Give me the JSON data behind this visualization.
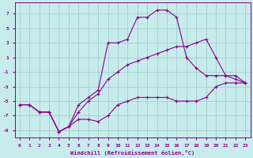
{
  "xlabel": "Windchill (Refroidissement éolien,°C)",
  "bg_color": "#c8ecec",
  "grid_color": "#a0cccc",
  "line_color": "#880088",
  "xlim": [
    -0.5,
    23.5
  ],
  "ylim": [
    -10,
    8.5
  ],
  "yticks": [
    -9,
    -7,
    -5,
    -3,
    -1,
    1,
    3,
    5,
    7
  ],
  "xticks": [
    0,
    1,
    2,
    3,
    4,
    5,
    6,
    7,
    8,
    9,
    10,
    11,
    12,
    13,
    14,
    15,
    16,
    17,
    18,
    19,
    20,
    21,
    22,
    23
  ],
  "line1_x": [
    0,
    1,
    2,
    3,
    4,
    5,
    6,
    7,
    8,
    9,
    10,
    11,
    12,
    13,
    14,
    15,
    16,
    17,
    18,
    19,
    20,
    21,
    22,
    23
  ],
  "line1_y": [
    -5.5,
    -5.5,
    -6.5,
    -6.5,
    -9.2,
    -8.5,
    -7.5,
    -7.5,
    -7.8,
    -7.0,
    -5.5,
    -5.0,
    -4.5,
    -4.5,
    -4.5,
    -4.5,
    -5.0,
    -5.0,
    -5.0,
    -4.5,
    -3.0,
    -2.5,
    -2.5,
    -2.5
  ],
  "line2_x": [
    0,
    1,
    2,
    3,
    4,
    5,
    6,
    7,
    8,
    9,
    10,
    11,
    12,
    13,
    14,
    15,
    16,
    17,
    18,
    19,
    20,
    21,
    22,
    23
  ],
  "line2_y": [
    -5.5,
    -5.5,
    -6.5,
    -6.5,
    -9.2,
    -8.5,
    -5.5,
    -4.5,
    -3.5,
    3.0,
    3.0,
    3.5,
    6.5,
    6.5,
    7.5,
    7.5,
    6.5,
    1.0,
    -0.5,
    -1.5,
    -1.5,
    -1.5,
    -1.5,
    -2.5
  ],
  "line3_x": [
    0,
    1,
    2,
    3,
    4,
    5,
    6,
    7,
    8,
    9,
    10,
    11,
    12,
    13,
    14,
    15,
    16,
    17,
    18,
    19,
    20,
    21,
    22,
    23
  ],
  "line3_y": [
    -5.5,
    -5.5,
    -6.5,
    -6.5,
    -9.2,
    -8.5,
    -6.5,
    -5.0,
    -4.0,
    -2.0,
    -1.0,
    0.0,
    0.5,
    1.0,
    1.5,
    2.0,
    2.5,
    2.5,
    3.0,
    3.5,
    1.0,
    -1.5,
    -2.0,
    -2.5
  ]
}
